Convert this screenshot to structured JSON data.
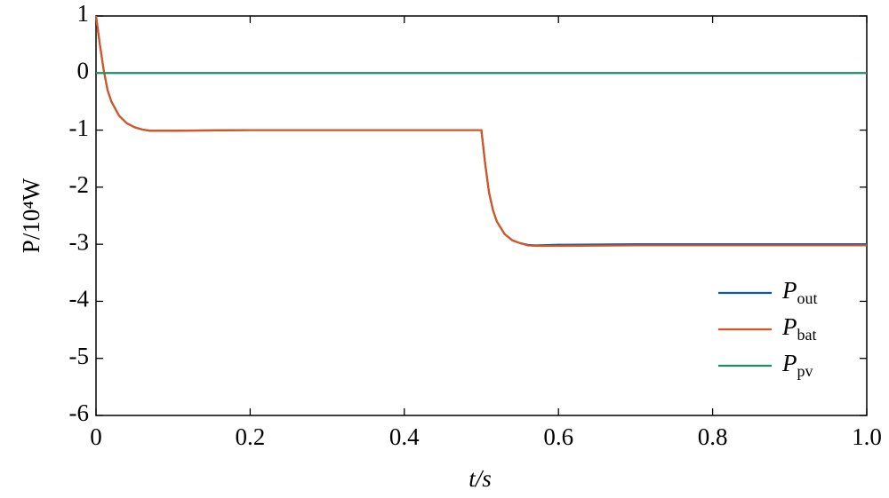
{
  "chart_data": {
    "type": "line",
    "xlabel": "t/s",
    "ylabel": "P/10⁴W",
    "x": [
      0,
      0.005,
      0.01,
      0.015,
      0.02,
      0.03,
      0.04,
      0.05,
      0.06,
      0.07,
      0.1,
      0.2,
      0.3,
      0.4,
      0.5,
      0.505,
      0.51,
      0.515,
      0.52,
      0.53,
      0.54,
      0.55,
      0.56,
      0.57,
      0.6,
      0.7,
      0.8,
      0.9,
      1
    ],
    "series": [
      {
        "name": "Pout",
        "color": "#0e5aa7",
        "values": [
          1,
          0.5,
          0.05,
          -0.3,
          -0.5,
          -0.75,
          -0.88,
          -0.95,
          -0.99,
          -1.01,
          -1.01,
          -1,
          -1,
          -1,
          -1,
          -1.6,
          -2.1,
          -2.4,
          -2.6,
          -2.82,
          -2.93,
          -2.98,
          -3.01,
          -3.02,
          -3.01,
          -3,
          -3,
          -3,
          -3
        ]
      },
      {
        "name": "Pbat",
        "color": "#d9541e",
        "values": [
          1,
          0.5,
          0.05,
          -0.3,
          -0.5,
          -0.75,
          -0.88,
          -0.95,
          -0.99,
          -1.01,
          -1.01,
          -1,
          -1,
          -1,
          -1,
          -1.6,
          -2.1,
          -2.4,
          -2.6,
          -2.82,
          -2.93,
          -2.98,
          -3.02,
          -3.03,
          -3.03,
          -3.02,
          -3.02,
          -3.02,
          -3.02
        ]
      },
      {
        "name": "Ppv",
        "color": "#1e8c64",
        "values": [
          0,
          0,
          0,
          0,
          0,
          0,
          0,
          0,
          0,
          0,
          0,
          0,
          0,
          0,
          0,
          0,
          0,
          0,
          0,
          0,
          0,
          0,
          0,
          0,
          0,
          0,
          0,
          0,
          0
        ]
      }
    ],
    "xlim": [
      0,
      1
    ],
    "xticks": [
      0,
      0.2,
      0.4,
      0.6,
      0.8,
      {
        "value": 1,
        "label": "1.0"
      }
    ],
    "ylim": [
      -6,
      1
    ],
    "yticks": [
      -6,
      -5,
      -4,
      -3,
      -2,
      -1,
      0,
      1
    ],
    "legend": "lower right"
  }
}
